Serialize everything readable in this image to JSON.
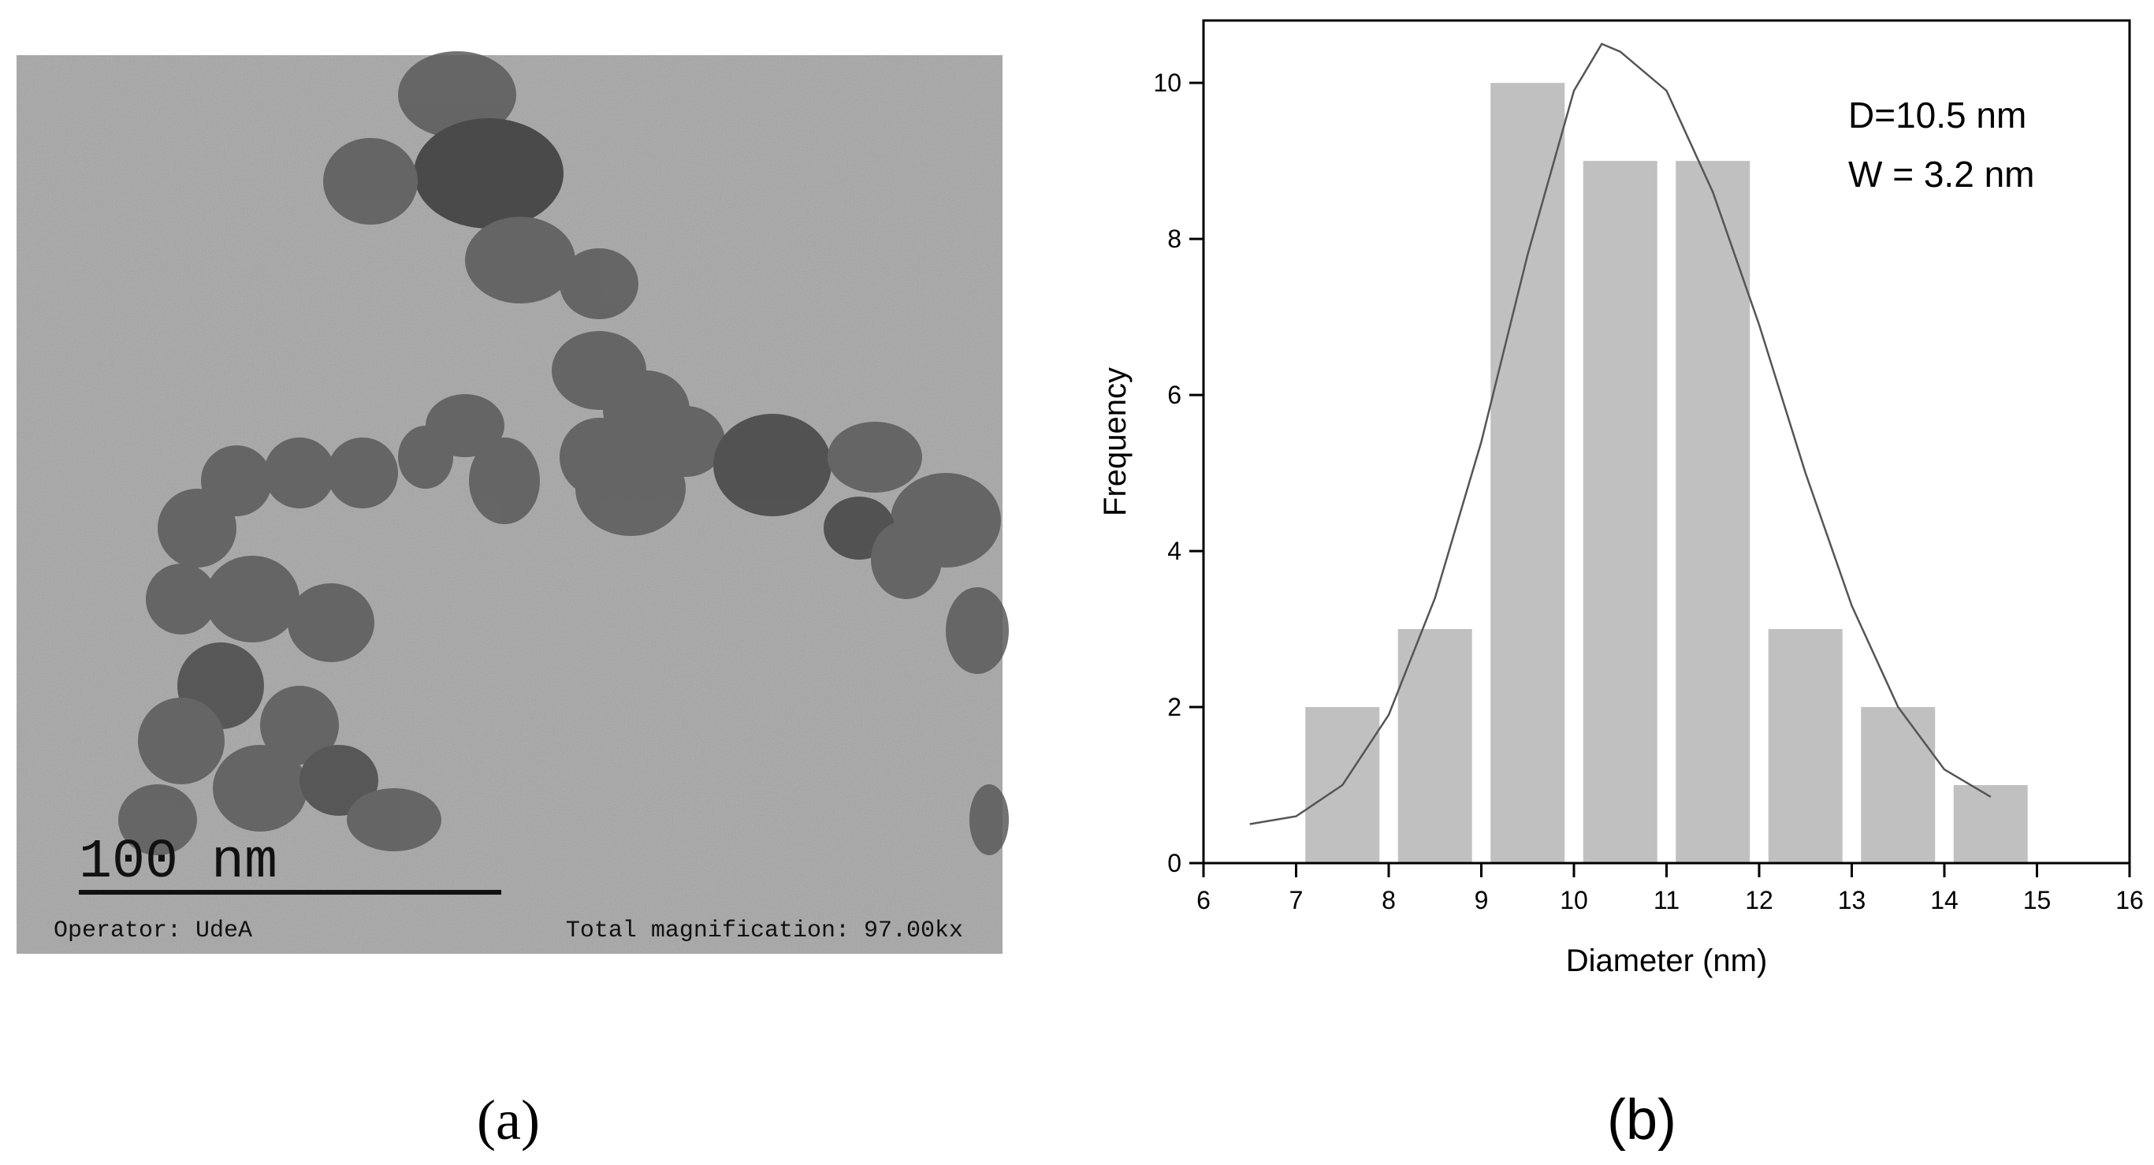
{
  "panel_a": {
    "scale_bar": "100 nm",
    "operator": "Operator: UdeA",
    "magnification": "Total magnification: 97.00kx",
    "caption": "(a)"
  },
  "chart_data": {
    "type": "histogram",
    "caption": "(b)",
    "x_label": "Diameter (nm)",
    "y_label": "Frequency",
    "annotations": [
      "D=10.5 nm",
      "W = 3.2 nm"
    ],
    "bins": [
      7,
      8,
      9,
      10,
      11,
      12,
      13,
      14,
      15
    ],
    "values": [
      2,
      3,
      10,
      9,
      9,
      3,
      2,
      1
    ],
    "color": "#c0c0c0",
    "fit": {
      "color": "#555555",
      "x": [
        6.5,
        7,
        7.5,
        8,
        8.5,
        9,
        9.5,
        10,
        10.3,
        10.5,
        11,
        11.5,
        12,
        12.5,
        13,
        13.5,
        14,
        14.5
      ],
      "values": [
        0.5,
        0.6,
        1.0,
        1.9,
        3.4,
        5.4,
        7.8,
        9.9,
        10.5,
        10.4,
        9.9,
        8.6,
        6.9,
        5.0,
        3.3,
        2.0,
        1.2,
        0.85
      ]
    },
    "xlim": [
      6,
      16
    ],
    "ylim": [
      0,
      10.8
    ],
    "xticks": [
      6,
      7,
      8,
      9,
      10,
      11,
      12,
      13,
      14,
      15,
      16
    ],
    "yticks": [
      0,
      2,
      4,
      6,
      8,
      10
    ]
  }
}
